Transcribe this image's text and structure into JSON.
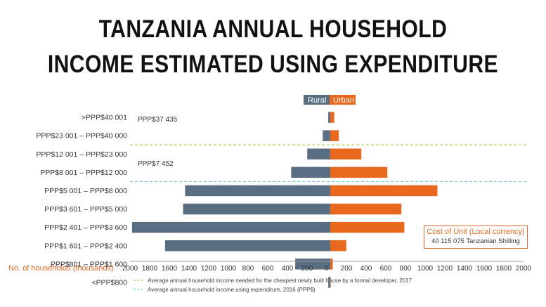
{
  "title": {
    "line1": "TANZANIA ANNUAL HOUSEHOLD",
    "line2": "INCOME ESTIMATED USING EXPENDITURE"
  },
  "colors": {
    "rural": "#5a6e82",
    "urban": "#e8681e",
    "house_line": "#9bbb2f",
    "expenditure_line": "#5ec3e3"
  },
  "legend": {
    "rural": "Rural",
    "urban": "Urban"
  },
  "x_axis_title": "No. of households (thousands)",
  "reference_lines": {
    "house_price_label": "PPP$37 435",
    "expenditure_label": "PPP$7 452"
  },
  "notes": [
    "Average annual household income needed for the cheapest newly built house by a formal developer, 2017",
    "Average annual household income using expenditure, 2016 (PPP$)"
  ],
  "cost_box": {
    "heading": "Cost of Unit (Local currency)",
    "value": "40 115 075 Tanzanian Shilling"
  },
  "chart_data": {
    "type": "bar",
    "orientation": "horizontal-population-pyramid",
    "categories": [
      ">PPP$40 001",
      "PPP$23 001 – PPP$40 000",
      "PPP$12 001 – PPP$23 000",
      "PPP$8 001 – PPP$12 000",
      "PPP$5 001 – PPP$8 000",
      "PPP$3 601 – PPP$5 000",
      "PPP$2 401 – PPP$3 600",
      "PPP$1 601 – PPP$2 400",
      "PPP$801 – PPP$1 600",
      "<PPP$800"
    ],
    "series": [
      {
        "name": "Rural",
        "side": "left",
        "values": [
          20,
          75,
          230,
          390,
          1450,
          1470,
          1980,
          1650,
          350,
          20
        ]
      },
      {
        "name": "Urban",
        "side": "right",
        "values": [
          40,
          85,
          310,
          570,
          1070,
          710,
          740,
          160,
          25,
          5
        ]
      }
    ],
    "x_ticks": [
      "2000",
      "1800",
      "1600",
      "1400",
      "1200",
      "1000",
      "800",
      "600",
      "400",
      "200",
      "0",
      "200",
      "400",
      "600",
      "800",
      "1000",
      "1200",
      "1400",
      "1600",
      "1800",
      "2000"
    ],
    "xlim": [
      -2000,
      2000
    ],
    "xlabel": "No. of households (thousands)",
    "reference_lines": [
      {
        "label": "PPP$37 435",
        "between_categories": [
          1,
          2
        ]
      },
      {
        "label": "PPP$7 452",
        "between_categories": [
          3,
          4
        ]
      }
    ]
  }
}
